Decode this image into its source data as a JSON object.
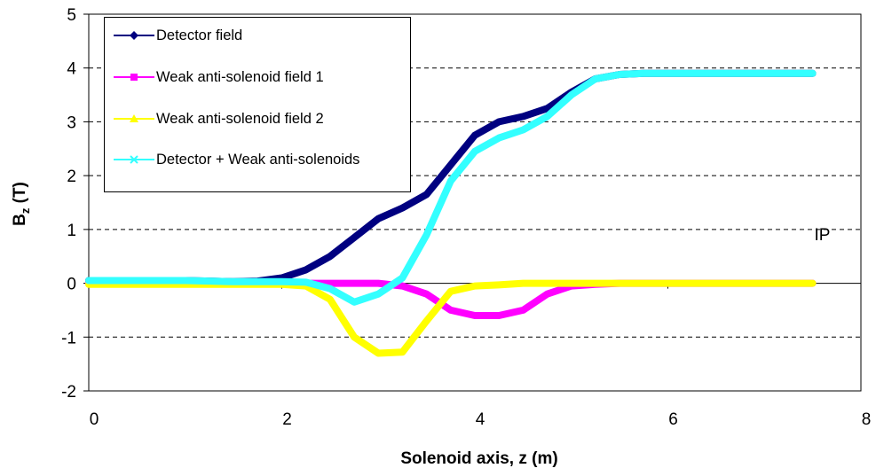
{
  "chart_data": {
    "type": "line",
    "x_label": "Solenoid axis, z (m)",
    "y_label": {
      "base": "B",
      "subscript": "z",
      "rest": " (T)"
    },
    "annotation": "IP",
    "annotation_pos": [
      7.6,
      0.8
    ],
    "xlim": [
      0,
      8
    ],
    "xticks": [
      0,
      2,
      4,
      6,
      8
    ],
    "ylim": [
      -2,
      5
    ],
    "yticks": [
      -2,
      -1,
      0,
      1,
      2,
      3,
      4,
      5
    ],
    "grid": true,
    "legend": "upper left",
    "x": [
      0,
      0.25,
      0.5,
      0.75,
      1,
      1.25,
      1.5,
      1.75,
      2,
      2.25,
      2.5,
      2.75,
      3,
      3.25,
      3.5,
      3.75,
      4,
      4.25,
      4.5,
      4.75,
      5,
      5.25,
      5.5,
      5.75,
      6,
      6.25,
      6.5,
      6.75,
      7,
      7.25,
      7.5
    ],
    "series": [
      {
        "name": "Detector field",
        "color": "#000080",
        "marker": "diamond",
        "values": [
          0.05,
          0.05,
          0.05,
          0.05,
          0.05,
          0.04,
          0.03,
          0.04,
          0.1,
          0.25,
          0.5,
          0.85,
          1.2,
          1.4,
          1.65,
          2.2,
          2.75,
          3.0,
          3.1,
          3.25,
          3.55,
          3.8,
          3.88,
          3.9,
          3.9,
          3.9,
          3.9,
          3.9,
          3.9,
          3.9,
          3.9
        ]
      },
      {
        "name": "Weak anti-solenoid field 1",
        "color": "#ff00ff",
        "marker": "square",
        "values": [
          0,
          0,
          0,
          0,
          0,
          0,
          0,
          0,
          0,
          0,
          0,
          0,
          0,
          -0.05,
          -0.2,
          -0.5,
          -0.6,
          -0.6,
          -0.5,
          -0.2,
          -0.05,
          -0.02,
          0,
          0,
          0,
          0,
          0,
          0,
          0,
          0,
          0
        ]
      },
      {
        "name": "Weak anti-solenoid field 2",
        "color": "#ffff00",
        "marker": "triangle",
        "values": [
          -0.02,
          -0.02,
          -0.02,
          -0.02,
          -0.02,
          -0.02,
          -0.02,
          -0.02,
          -0.02,
          -0.05,
          -0.3,
          -1.0,
          -1.3,
          -1.28,
          -0.7,
          -0.15,
          -0.05,
          -0.03,
          0,
          0,
          0,
          0,
          0,
          0,
          0,
          0,
          0,
          0,
          0,
          0,
          0
        ]
      },
      {
        "name": "Detector + Weak anti-solenoids",
        "color": "#33ffff",
        "marker": "x",
        "values": [
          0.05,
          0.05,
          0.05,
          0.05,
          0.05,
          0.04,
          0.03,
          0.03,
          0.03,
          0.02,
          -0.1,
          -0.35,
          -0.2,
          0.1,
          0.9,
          1.9,
          2.45,
          2.7,
          2.85,
          3.1,
          3.5,
          3.8,
          3.88,
          3.9,
          3.9,
          3.9,
          3.9,
          3.9,
          3.9,
          3.9,
          3.9
        ]
      }
    ]
  }
}
